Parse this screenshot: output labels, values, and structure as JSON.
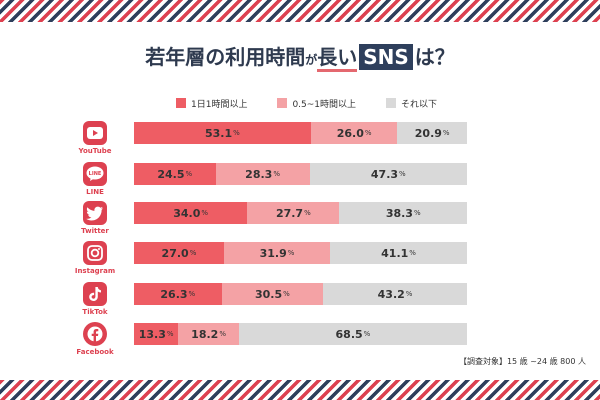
{
  "title": {
    "part1": "若年層の利用時間",
    "part2": "が",
    "part3": "長い",
    "part4": "SNS",
    "part5": "は？"
  },
  "colors": {
    "cat1": "#ee5d64",
    "cat2": "#f4a2a5",
    "cat3": "#d9d9d9",
    "brand": "#dd4150",
    "navy": "#2e3f5c"
  },
  "note": "【調査対象】15 歳 ~24 歳 800 人",
  "chart_data": {
    "type": "bar",
    "orientation": "horizontal",
    "stacked": true,
    "unit": "%",
    "categories": [
      "YouTube",
      "LINE",
      "Twitter",
      "Instagram",
      "TikTok",
      "Facebook"
    ],
    "icons": [
      "youtube-icon",
      "line-icon",
      "twitter-icon",
      "instagram-icon",
      "tiktok-icon",
      "facebook-icon"
    ],
    "series": [
      {
        "name": "1日1時間以上",
        "color": "#ee5d64",
        "values": [
          53.1,
          24.5,
          34.0,
          27.0,
          26.3,
          13.3
        ]
      },
      {
        "name": "0.5~1時間以上",
        "color": "#f4a2a5",
        "values": [
          26.0,
          28.3,
          27.7,
          31.9,
          30.5,
          18.2
        ]
      },
      {
        "name": "それ以下",
        "color": "#d9d9d9",
        "values": [
          20.9,
          47.3,
          38.3,
          41.1,
          43.2,
          68.5
        ]
      }
    ]
  }
}
